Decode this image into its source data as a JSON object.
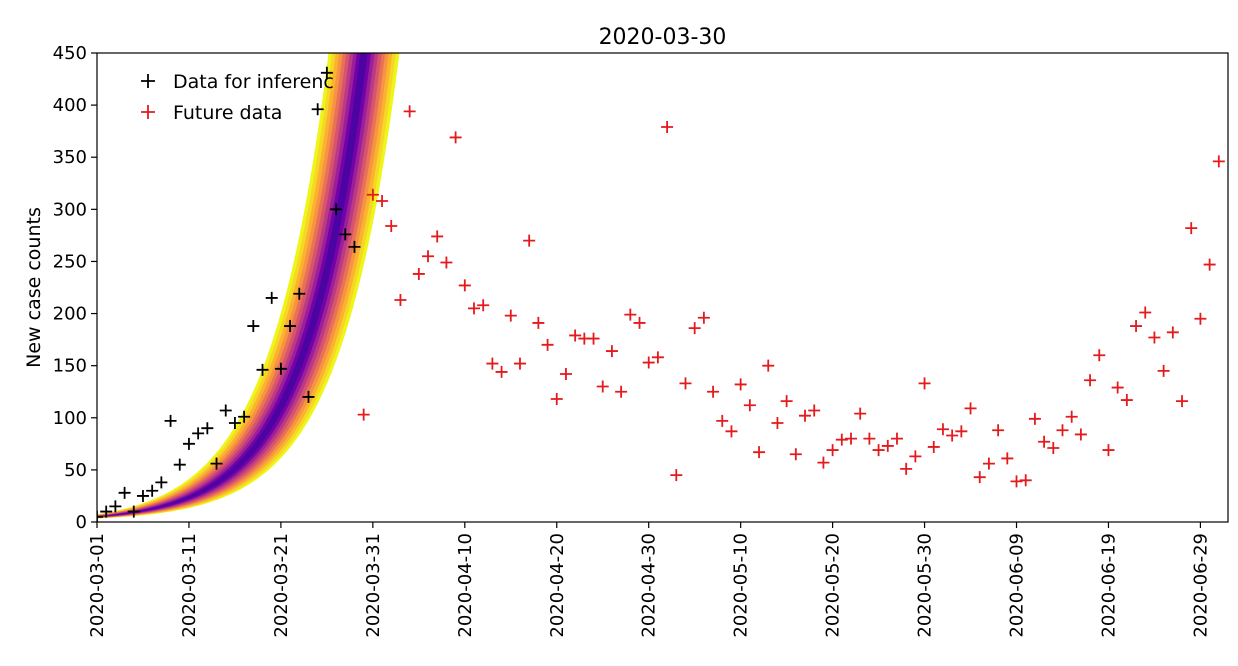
{
  "chart_data": {
    "type": "scatter",
    "title": "2020-03-30",
    "ylabel": "New case counts",
    "xlabel": "",
    "ylim": [
      0,
      450
    ],
    "xlim": [
      "2020-03-01",
      "2020-07-02"
    ],
    "y_ticks": [
      0,
      50,
      100,
      150,
      200,
      250,
      300,
      350,
      400,
      450
    ],
    "x_ticks": [
      "2020-03-01",
      "2020-03-11",
      "2020-03-21",
      "2020-03-31",
      "2020-04-10",
      "2020-04-20",
      "2020-04-30",
      "2020-05-10",
      "2020-05-20",
      "2020-05-30",
      "2020-06-09",
      "2020-06-19",
      "2020-06-29"
    ],
    "legend_placement": "top-left",
    "grid": false,
    "band_colors": [
      "#eef519",
      "#f6d626",
      "#fbb32f",
      "#f79442",
      "#e97158",
      "#d6556d",
      "#bc3a83",
      "#9a1f9a",
      "#7402a8",
      "#4b03a1"
    ],
    "series": [
      {
        "name": "Data for inferenc",
        "color": "#000000",
        "marker": "+",
        "points": [
          [
            "2020-03-01",
            5
          ],
          [
            "2020-03-02",
            10
          ],
          [
            "2020-03-03",
            15
          ],
          [
            "2020-03-04",
            28
          ],
          [
            "2020-03-05",
            10
          ],
          [
            "2020-03-06",
            25
          ],
          [
            "2020-03-07",
            30
          ],
          [
            "2020-03-08",
            38
          ],
          [
            "2020-03-09",
            97
          ],
          [
            "2020-03-10",
            55
          ],
          [
            "2020-03-11",
            75
          ],
          [
            "2020-03-12",
            85
          ],
          [
            "2020-03-13",
            90
          ],
          [
            "2020-03-14",
            56
          ],
          [
            "2020-03-15",
            107
          ],
          [
            "2020-03-16",
            95
          ],
          [
            "2020-03-17",
            101
          ],
          [
            "2020-03-18",
            188
          ],
          [
            "2020-03-19",
            146
          ],
          [
            "2020-03-20",
            215
          ],
          [
            "2020-03-21",
            147
          ],
          [
            "2020-03-22",
            188
          ],
          [
            "2020-03-23",
            219
          ],
          [
            "2020-03-24",
            120
          ],
          [
            "2020-03-25",
            396
          ],
          [
            "2020-03-26",
            431
          ],
          [
            "2020-03-27",
            300
          ],
          [
            "2020-03-28",
            276
          ],
          [
            "2020-03-29",
            264
          ]
        ]
      },
      {
        "name": "Future data",
        "color": "#e41a1c",
        "marker": "+",
        "points": [
          [
            "2020-03-30",
            103
          ],
          [
            "2020-03-31",
            314
          ],
          [
            "2020-04-01",
            308
          ],
          [
            "2020-04-02",
            284
          ],
          [
            "2020-04-03",
            213
          ],
          [
            "2020-04-04",
            394
          ],
          [
            "2020-04-05",
            238
          ],
          [
            "2020-04-06",
            255
          ],
          [
            "2020-04-07",
            274
          ],
          [
            "2020-04-08",
            249
          ],
          [
            "2020-04-09",
            369
          ],
          [
            "2020-04-10",
            227
          ],
          [
            "2020-04-11",
            205
          ],
          [
            "2020-04-12",
            208
          ],
          [
            "2020-04-13",
            152
          ],
          [
            "2020-04-14",
            144
          ],
          [
            "2020-04-15",
            198
          ],
          [
            "2020-04-16",
            152
          ],
          [
            "2020-04-17",
            270
          ],
          [
            "2020-04-18",
            191
          ],
          [
            "2020-04-19",
            170
          ],
          [
            "2020-04-20",
            118
          ],
          [
            "2020-04-21",
            142
          ],
          [
            "2020-04-22",
            179
          ],
          [
            "2020-04-23",
            176
          ],
          [
            "2020-04-24",
            176
          ],
          [
            "2020-04-25",
            130
          ],
          [
            "2020-04-26",
            164
          ],
          [
            "2020-04-27",
            125
          ],
          [
            "2020-04-28",
            199
          ],
          [
            "2020-04-29",
            191
          ],
          [
            "2020-04-30",
            153
          ],
          [
            "2020-05-01",
            158
          ],
          [
            "2020-05-02",
            379
          ],
          [
            "2020-05-03",
            45
          ],
          [
            "2020-05-04",
            133
          ],
          [
            "2020-05-05",
            186
          ],
          [
            "2020-05-06",
            196
          ],
          [
            "2020-05-07",
            125
          ],
          [
            "2020-05-08",
            97
          ],
          [
            "2020-05-09",
            87
          ],
          [
            "2020-05-10",
            132
          ],
          [
            "2020-05-11",
            112
          ],
          [
            "2020-05-12",
            67
          ],
          [
            "2020-05-13",
            150
          ],
          [
            "2020-05-14",
            95
          ],
          [
            "2020-05-15",
            116
          ],
          [
            "2020-05-16",
            65
          ],
          [
            "2020-05-17",
            102
          ],
          [
            "2020-05-18",
            107
          ],
          [
            "2020-05-19",
            57
          ],
          [
            "2020-05-20",
            69
          ],
          [
            "2020-05-21",
            79
          ],
          [
            "2020-05-22",
            80
          ],
          [
            "2020-05-23",
            104
          ],
          [
            "2020-05-24",
            80
          ],
          [
            "2020-05-25",
            69
          ],
          [
            "2020-05-26",
            73
          ],
          [
            "2020-05-27",
            80
          ],
          [
            "2020-05-28",
            51
          ],
          [
            "2020-05-29",
            63
          ],
          [
            "2020-05-30",
            133
          ],
          [
            "2020-05-31",
            72
          ],
          [
            "2020-06-01",
            89
          ],
          [
            "2020-06-02",
            83
          ],
          [
            "2020-06-03",
            87
          ],
          [
            "2020-06-04",
            109
          ],
          [
            "2020-06-05",
            43
          ],
          [
            "2020-06-06",
            56
          ],
          [
            "2020-06-07",
            88
          ],
          [
            "2020-06-08",
            61
          ],
          [
            "2020-06-09",
            39
          ],
          [
            "2020-06-10",
            40
          ],
          [
            "2020-06-11",
            99
          ],
          [
            "2020-06-12",
            77
          ],
          [
            "2020-06-13",
            71
          ],
          [
            "2020-06-14",
            88
          ],
          [
            "2020-06-15",
            101
          ],
          [
            "2020-06-16",
            84
          ],
          [
            "2020-06-17",
            136
          ],
          [
            "2020-06-18",
            160
          ],
          [
            "2020-06-19",
            69
          ],
          [
            "2020-06-20",
            129
          ],
          [
            "2020-06-21",
            117
          ],
          [
            "2020-06-22",
            188
          ],
          [
            "2020-06-23",
            201
          ],
          [
            "2020-06-24",
            177
          ],
          [
            "2020-06-25",
            145
          ],
          [
            "2020-06-26",
            182
          ],
          [
            "2020-06-27",
            116
          ],
          [
            "2020-06-28",
            282
          ],
          [
            "2020-06-29",
            195
          ],
          [
            "2020-06-30",
            247
          ],
          [
            "2020-07-01",
            346
          ]
        ]
      }
    ]
  }
}
